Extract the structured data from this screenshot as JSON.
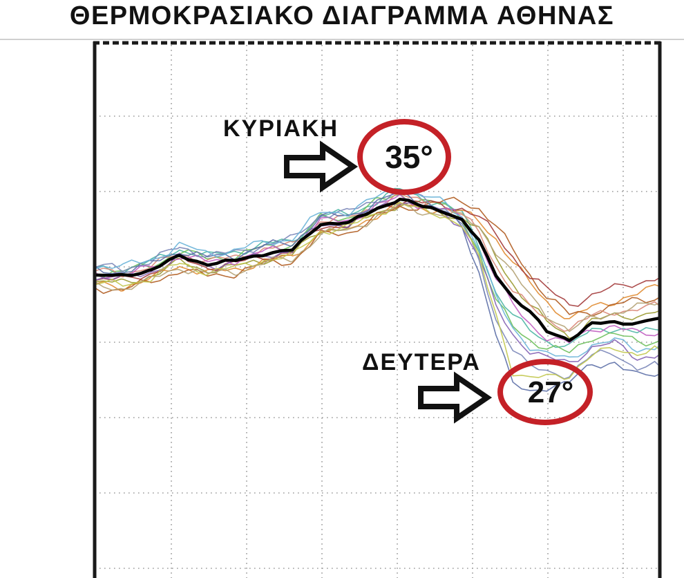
{
  "title": "ΘΕΡΜΟΚΡΑΣΙΑΚΟ ΔΙΑΓΡΑΜΜΑ ΑΘΗΝΑΣ",
  "colors": {
    "highlight_red": "#c42127",
    "mean_line": "#000000",
    "grid_dots": "#9a9a9a",
    "plot_border": "#1a1a1a",
    "text": "#111111"
  },
  "chart_data": {
    "type": "line",
    "subtype": "ensemble-spaghetti-forecast",
    "title": "ΘΕΡΜΟΚΡΑΣΙΑΚΟ ΔΙΑΓΡΑΜΜΑ ΑΘΗΝΑΣ",
    "xlabel": "",
    "ylabel": "",
    "grid": true,
    "legend": false,
    "axis_tick_labels_visible": false,
    "x_axis": {
      "unit": "time",
      "range_pct": [
        0,
        100
      ]
    },
    "y_axis": {
      "unit": "C",
      "estimated_ylim": [
        9.9,
        45.4
      ],
      "estimated_grid_step": 5
    },
    "x_pct": [
      0,
      5,
      10,
      15,
      20,
      25,
      30,
      35,
      40,
      45,
      50,
      54,
      58,
      62,
      65,
      68,
      71,
      74,
      77,
      80,
      84,
      88,
      92,
      96,
      100
    ],
    "mean_series": {
      "name": "ensemble-mean",
      "color": "#000000",
      "temps_c": [
        29.9,
        29.9,
        30.3,
        31.2,
        30.7,
        30.9,
        31.4,
        31.6,
        33.4,
        33.4,
        34.4,
        35.0,
        34.5,
        34.2,
        33.6,
        32.2,
        30.0,
        28.5,
        27.5,
        26.2,
        25.7,
        26.7,
        26.8,
        26.8,
        27.1
      ]
    },
    "members": [
      {
        "color": "#4db6a4",
        "temps_c": [
          30.4,
          30.3,
          30.8,
          31.7,
          31.2,
          31.5,
          32.0,
          32.2,
          33.9,
          34.0,
          34.9,
          35.6,
          35.1,
          34.6,
          34.0,
          32.0,
          28.8,
          27.2,
          26.3,
          25.6,
          25.2,
          26.3,
          26.5,
          26.1,
          26.3
        ]
      },
      {
        "color": "#6cbf5a",
        "temps_c": [
          30.1,
          30.2,
          30.6,
          31.5,
          31.1,
          31.2,
          31.8,
          32.0,
          33.7,
          33.8,
          34.8,
          35.3,
          34.9,
          34.5,
          33.8,
          31.5,
          28.2,
          26.6,
          25.7,
          25.1,
          24.8,
          25.9,
          26.0,
          25.5,
          25.6
        ]
      },
      {
        "color": "#9a9a30",
        "temps_c": [
          29.5,
          29.4,
          29.9,
          30.8,
          30.3,
          30.5,
          31.0,
          31.3,
          33.0,
          33.1,
          34.1,
          34.7,
          34.3,
          34.1,
          33.7,
          33.0,
          31.2,
          29.4,
          28.0,
          26.8,
          25.9,
          26.9,
          27.2,
          27.3,
          27.6
        ]
      },
      {
        "color": "#e08b30",
        "temps_c": [
          29.3,
          29.2,
          29.7,
          30.6,
          30.1,
          30.3,
          30.9,
          31.1,
          32.9,
          33.0,
          34.0,
          34.6,
          34.4,
          34.3,
          34.1,
          33.6,
          32.4,
          30.8,
          29.4,
          28.2,
          27.0,
          27.8,
          28.3,
          28.7,
          29.2
        ]
      },
      {
        "color": "#b05c20",
        "temps_c": [
          29.1,
          29.0,
          29.5,
          30.3,
          29.9,
          30.1,
          30.7,
          30.9,
          32.6,
          32.8,
          33.8,
          34.4,
          34.6,
          34.8,
          34.9,
          34.4,
          33.2,
          31.6,
          30.0,
          28.6,
          27.3,
          27.5,
          28.0,
          28.2,
          28.5
        ]
      },
      {
        "color": "#a33a3a",
        "temps_c": [
          29.7,
          29.6,
          30.1,
          31.0,
          30.5,
          30.7,
          31.2,
          31.5,
          33.2,
          33.3,
          34.3,
          34.9,
          34.7,
          34.6,
          34.4,
          33.8,
          32.6,
          31.2,
          29.9,
          29.0,
          28.0,
          28.6,
          29.1,
          29.5,
          29.8
        ]
      },
      {
        "color": "#d98878",
        "temps_c": [
          30.2,
          30.1,
          30.5,
          31.4,
          30.9,
          31.1,
          31.7,
          31.9,
          33.6,
          33.7,
          34.6,
          35.2,
          34.8,
          34.4,
          33.9,
          32.8,
          30.6,
          29.0,
          27.8,
          27.0,
          26.4,
          27.2,
          27.6,
          27.7,
          27.9
        ]
      },
      {
        "color": "#c05cc0",
        "temps_c": [
          30.0,
          30.0,
          30.4,
          31.3,
          30.8,
          31.0,
          31.5,
          31.8,
          33.5,
          33.6,
          34.5,
          35.1,
          34.6,
          34.3,
          33.7,
          32.3,
          29.8,
          27.9,
          26.7,
          25.9,
          25.4,
          26.4,
          26.6,
          26.0,
          26.1
        ]
      },
      {
        "color": "#8462b4",
        "temps_c": [
          29.8,
          29.7,
          30.2,
          31.1,
          30.6,
          30.8,
          31.3,
          31.6,
          33.3,
          33.4,
          34.4,
          35.0,
          34.4,
          34.0,
          33.2,
          31.2,
          27.8,
          26.0,
          25.0,
          24.4,
          24.1,
          25.2,
          25.4,
          24.5,
          24.7
        ]
      },
      {
        "color": "#7a86b8",
        "temps_c": [
          30.5,
          30.4,
          30.9,
          31.8,
          31.3,
          31.4,
          32.0,
          32.3,
          34.0,
          34.1,
          35.0,
          35.5,
          35.0,
          34.4,
          33.4,
          30.8,
          27.0,
          25.2,
          23.8,
          23.5,
          23.4,
          24.6,
          24.8,
          23.8,
          23.9
        ]
      },
      {
        "color": "#5b6ea6",
        "temps_c": [
          30.3,
          30.2,
          30.7,
          31.6,
          31.1,
          31.3,
          31.9,
          32.1,
          33.8,
          33.9,
          34.8,
          35.4,
          34.8,
          34.2,
          33.0,
          30.2,
          26.2,
          22.6,
          22.2,
          22.6,
          22.8,
          24.0,
          24.2,
          23.2,
          23.4
        ]
      },
      {
        "color": "#6ab4d8",
        "temps_c": [
          30.6,
          30.5,
          31.0,
          31.9,
          31.4,
          31.6,
          32.1,
          32.4,
          34.1,
          34.2,
          35.1,
          35.7,
          35.2,
          34.7,
          33.9,
          31.8,
          28.4,
          26.4,
          25.3,
          24.7,
          24.3,
          25.4,
          25.6,
          25.0,
          25.3
        ]
      },
      {
        "color": "#c2c84e",
        "temps_c": [
          29.4,
          29.3,
          29.8,
          30.7,
          30.2,
          30.4,
          31.0,
          31.2,
          32.9,
          33.1,
          34.1,
          34.7,
          34.2,
          33.9,
          33.3,
          31.0,
          27.4,
          23.6,
          23.0,
          23.2,
          23.4,
          24.6,
          25.1,
          24.8,
          25.0
        ]
      },
      {
        "color": "#b4a274",
        "temps_c": [
          29.2,
          29.1,
          29.6,
          30.5,
          30.0,
          30.2,
          30.8,
          31.0,
          32.7,
          32.9,
          33.9,
          34.5,
          34.2,
          34.0,
          33.8,
          33.2,
          31.6,
          30.0,
          28.6,
          27.4,
          26.2,
          27.1,
          27.5,
          27.8,
          28.1
        ]
      }
    ],
    "annotations": [
      {
        "label": "ΚΥΡΙΑΚΗ",
        "temp": "35°",
        "points_at": "forecast peak"
      },
      {
        "label": "ΔΕΥΤΕΡΑ",
        "temp": "27°",
        "points_at": "post-drop level"
      }
    ]
  }
}
